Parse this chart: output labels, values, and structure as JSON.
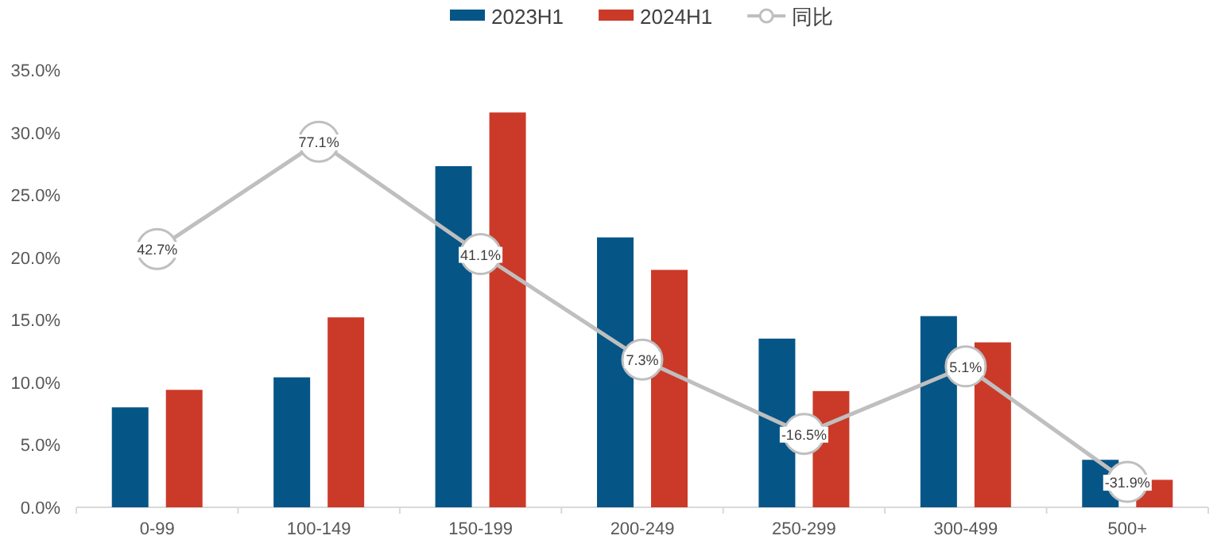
{
  "chart_data": {
    "type": "bar",
    "categories": [
      "0-99",
      "100-149",
      "150-199",
      "200-249",
      "250-299",
      "300-499",
      "500+"
    ],
    "series": [
      {
        "name": "2023H1",
        "color": "#065587",
        "values": [
          8.0,
          10.4,
          27.3,
          21.6,
          13.5,
          15.3,
          3.8
        ]
      },
      {
        "name": "2024H1",
        "color": "#cb3a29",
        "values": [
          9.4,
          15.2,
          31.6,
          19.0,
          9.3,
          13.2,
          2.2
        ]
      },
      {
        "name": "同比",
        "type": "line",
        "axis": "y2",
        "color": "#bfbfbf",
        "marker": "circle",
        "values": [
          42.7,
          77.1,
          41.1,
          7.3,
          -16.5,
          5.1,
          -31.9
        ],
        "value_labels": [
          "42.7%",
          "77.1%",
          "41.1%",
          "7.3%",
          "-16.5%",
          "5.1%",
          "-31.9%"
        ]
      }
    ],
    "ylim": [
      0,
      35
    ],
    "yticks": [
      {
        "value": 0,
        "label": "0.0%"
      },
      {
        "value": 5,
        "label": "5.0%"
      },
      {
        "value": 10,
        "label": "10.0%"
      },
      {
        "value": 15,
        "label": "15.0%"
      },
      {
        "value": 20,
        "label": "20.0%"
      },
      {
        "value": 25,
        "label": "25.0%"
      },
      {
        "value": 30,
        "label": "30.0%"
      },
      {
        "value": 35,
        "label": "35.0%"
      }
    ],
    "legend": "top",
    "grid": false
  }
}
